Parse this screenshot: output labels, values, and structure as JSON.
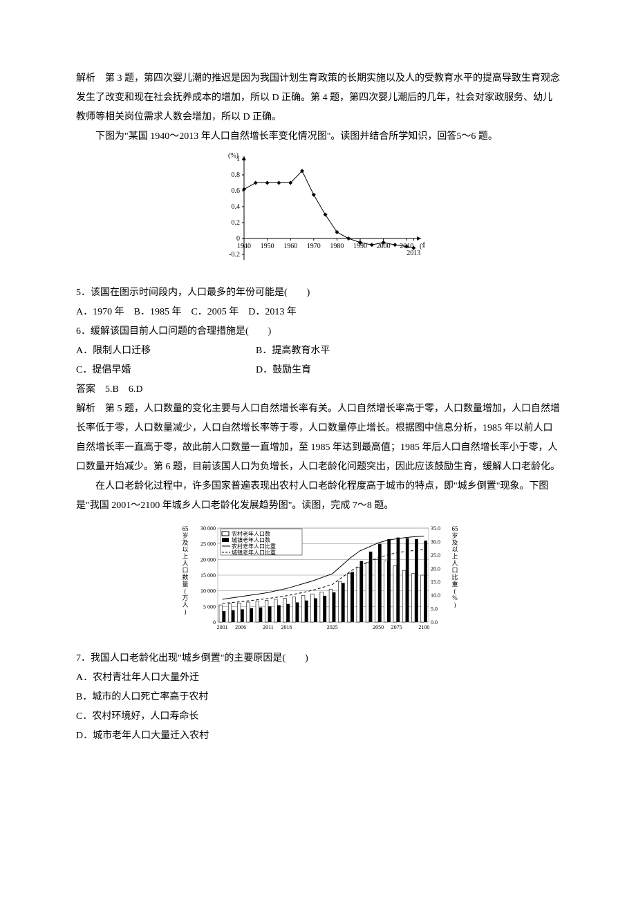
{
  "para1": "解析　第 3 题，第四次婴儿潮的推迟是因为我国计划生育政策的长期实施以及人的受教育水平的提高导致生育观念发生了改变和现在社会抚养成本的增加，所以 D 正确。第 4 题，第四次婴儿潮后的几年，社会对家政服务、幼儿教师等相关岗位需求人数会增加，所以 D 正确。",
  "para2": "下图为\"某国 1940～2013 年人口自然增长率变化情况图\"。读图并结合所学知识，回答5～6 题。",
  "chart1": {
    "type": "line",
    "x_label": "(年)",
    "y_label": "(%)",
    "x_ticks": [
      "1940",
      "1950",
      "1960",
      "1970",
      "1980",
      "1990",
      "2000",
      "2010",
      "2013"
    ],
    "y_ticks": [
      "-0.2",
      "0",
      "0.2",
      "0.4",
      "0.6",
      "0.8",
      "1"
    ],
    "points_x": [
      1940,
      1945,
      1950,
      1955,
      1960,
      1965,
      1970,
      1975,
      1980,
      1985,
      1990,
      1995,
      2000,
      2005,
      2010,
      2013
    ],
    "points_y": [
      0.62,
      0.7,
      0.7,
      0.7,
      0.7,
      0.85,
      0.55,
      0.3,
      0.08,
      0.0,
      -0.05,
      -0.08,
      -0.05,
      -0.08,
      -0.1,
      -0.12
    ],
    "axis_color": "#000000",
    "line_color": "#000000",
    "marker": "diamond",
    "background": "#ffffff"
  },
  "q5_stem": "5．该国在图示时间段内，人口最多的年份可能是(　　)",
  "q5_opts": "A．1970 年　B．1985 年　C．2005 年　D．2013 年",
  "q6_stem": "6．缓解该国目前人口问题的合理措施是(　　)",
  "q6_a": "A．限制人口迁移",
  "q6_b": "B．提高教育水平",
  "q6_c": "C．提倡早婚",
  "q6_d": "D．鼓励生育",
  "ans56": "答案　5.B　6.D",
  "para3": "解析　第 5 题，人口数量的变化主要与人口自然增长率有关。人口自然增长率高于零，人口数量增加，人口自然增长率低于零，人口数量减少，人口自然增长率等于零，人口数量停止增长。根据图中信息分析，1985 年以前人口自然增长率一直高于零，故此前人口数量一直增加，至 1985 年达到最高值；1985 年后人口自然增长率小于零，人口数量开始减少。第 6 题，目前该国人口为负增长，人口老龄化问题突出，因此应该鼓励生育，缓解人口老龄化。",
  "para4": "在人口老龄化过程中，许多国家普遍表现出农村人口老龄化程度高于城市的特点，即\"城乡倒置\"现象。下图是\"我国 2001～2100 年城乡人口老龄化发展趋势图\"。读图，完成 7～8 题。",
  "chart2": {
    "type": "bar+line",
    "left_label_lines": [
      "65",
      "岁",
      "及",
      "以",
      "上",
      "人",
      "口",
      "数",
      "量",
      "(",
      "万",
      "人",
      ")"
    ],
    "right_label_lines": [
      "65",
      "岁",
      "及",
      "以",
      "上",
      "人",
      "口",
      "比",
      "重",
      "(",
      "%",
      ")"
    ],
    "x_ticks": [
      "2001",
      "2006",
      "2011",
      "2016",
      "2025",
      "2050",
      "2075",
      "2100"
    ],
    "left_ticks": [
      "0",
      "5 000",
      "10 000",
      "15 000",
      "20 000",
      "25 000",
      "30 000"
    ],
    "right_ticks": [
      "0.0",
      "5.0",
      "10.0",
      "15.0",
      "20.0",
      "25.0",
      "30.0",
      "35.0"
    ],
    "legend": [
      "农村老年人口数",
      "城镇老年人口数",
      "农村老年人口比重",
      "城镇老年人口比重"
    ],
    "legend_styles": [
      "bar-open",
      "bar-solid",
      "line-solid",
      "line-dash"
    ],
    "bar_years": [
      2001,
      2003,
      2005,
      2007,
      2009,
      2011,
      2013,
      2015,
      2017,
      2019,
      2021,
      2023,
      2025,
      2030,
      2035,
      2040,
      2045,
      2050,
      2060,
      2070,
      2080,
      2090,
      2100
    ],
    "rural_bar": [
      5500,
      5800,
      6100,
      6400,
      6700,
      7000,
      7300,
      7600,
      8000,
      8500,
      9000,
      9600,
      10500,
      13000,
      15500,
      17500,
      19000,
      20000,
      19500,
      18000,
      16500,
      15500,
      15000
    ],
    "urban_bar": [
      3500,
      3800,
      4100,
      4400,
      4700,
      5000,
      5400,
      5800,
      6300,
      6900,
      7600,
      8400,
      9500,
      12500,
      16000,
      19500,
      22500,
      25000,
      26500,
      27000,
      26800,
      26500,
      26000
    ],
    "rural_ratio": [
      8.5,
      9.0,
      9.5,
      10.0,
      10.5,
      11.0,
      11.8,
      12.5,
      13.5,
      14.5,
      15.5,
      16.8,
      18.0,
      21.0,
      24.0,
      26.5,
      28.0,
      29.5,
      30.5,
      31.0,
      31.5,
      31.8,
      32.0
    ],
    "urban_ratio": [
      7.0,
      7.3,
      7.6,
      8.0,
      8.4,
      8.8,
      9.3,
      9.8,
      10.5,
      11.2,
      12.0,
      13.0,
      14.0,
      16.5,
      19.0,
      21.0,
      22.5,
      24.0,
      25.0,
      25.8,
      26.3,
      26.7,
      27.0
    ],
    "bar_open_fill": "#ffffff",
    "bar_open_stroke": "#000000",
    "bar_solid_fill": "#000000",
    "line_solid_color": "#000000",
    "line_dash_color": "#000000",
    "grid_color": "#888888",
    "background": "#ffffff"
  },
  "q7_stem": "7．我国人口老龄化出现\"城乡倒置\"的主要原因是(　　)",
  "q7_a": "A．农村青壮年人口大量外迁",
  "q7_b": "B．城市的人口死亡率高于农村",
  "q7_c": "C．农村环境好，人口寿命长",
  "q7_d": "D．城市老年人口大量迁入农村"
}
